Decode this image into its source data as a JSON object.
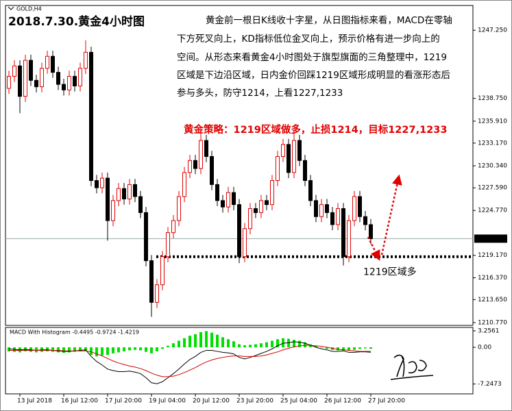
{
  "chart_data": [
    {
      "type": "candlestick",
      "title": "2018.7.30.黄金4小时图",
      "symbol": "GOLD,H4",
      "commentary": [
        "黄金前一根日K线收十字星，从日图指标来看，MACD在零轴",
        "下方死叉向上，KD指标低位金叉向上，预示价格有进一步向上的",
        "空间。从形态来看黄金4小时图处于旗型旗面的三角整理中，1219",
        "区域是下边沿区域，日内金价回踩1219区域形成明显的看涨形态后",
        "参与多头，防守1214，上看1227,1233"
      ],
      "strategy": "黄金策略：1219区域做多，止损1214，目标1227,1233",
      "support": {
        "value": 1219,
        "label": "1219区域多"
      },
      "last_price": {
        "value": 1221.25,
        "label": "1221.250"
      },
      "categories": [
        null,
        null,
        "13 Jul 2018",
        null,
        null,
        null,
        null,
        null,
        null,
        null,
        "16 Jul 12:00",
        null,
        null,
        null,
        null,
        null,
        null,
        null,
        "17 Jul 20:00",
        null,
        null,
        null,
        null,
        null,
        null,
        null,
        "19 Jul 04:00",
        null,
        null,
        null,
        null,
        null,
        null,
        null,
        "20 Jul 12:00",
        null,
        null,
        null,
        null,
        null,
        null,
        null,
        "23 Jul 20:00",
        null,
        null,
        null,
        null,
        null,
        null,
        null,
        "25 Jul 04:00",
        null,
        null,
        null,
        null,
        null,
        null,
        null,
        "26 Jul 12:00",
        null,
        null,
        null,
        null,
        null,
        null,
        null,
        "27 Jul 20:00"
      ],
      "open": [
        1240.0,
        1241.5,
        1242.8,
        1239.0,
        1243.5,
        1241.0,
        1240.2,
        1242.5,
        1244.0,
        1242.0,
        1240.5,
        1239.8,
        1241.5,
        1240.3,
        1242.5,
        1244.5,
        1228.5,
        1227.6,
        1228.8,
        1223.5,
        1226.0,
        1227.5,
        1226.2,
        1228.0,
        1226.5,
        1224.5,
        1218.5,
        1213.3,
        1215.5,
        1219.0,
        1222.0,
        1223.5,
        1226.5,
        1229.5,
        1231.0,
        1230.0,
        1233.5,
        1231.5,
        1228.0,
        1226.0,
        1225.2,
        1227.0,
        1225.5,
        1219.0,
        1222.5,
        1225.0,
        1224.5,
        1226.0,
        1225.5,
        1228.5,
        1231.5,
        1233.0,
        1229.5,
        1233.5,
        1231.0,
        1228.5,
        1226.0,
        1224.0,
        1225.5,
        1224.5,
        1223.0,
        1225.0,
        1219.0,
        1223.5,
        1226.5,
        1224.0,
        1223.0
      ],
      "high": [
        1242.2,
        1243.5,
        1243.5,
        1244.2,
        1244.2,
        1241.7,
        1243.2,
        1244.7,
        1244.7,
        1242.7,
        1241.2,
        1242.2,
        1242.2,
        1243.2,
        1246.0,
        1245.2,
        1229.2,
        1229.5,
        1229.5,
        1226.7,
        1228.2,
        1228.2,
        1228.7,
        1228.7,
        1227.2,
        1225.2,
        1219.2,
        1216.2,
        1219.7,
        1222.7,
        1224.2,
        1227.2,
        1230.2,
        1231.7,
        1231.7,
        1235.0,
        1234.2,
        1232.2,
        1228.7,
        1226.7,
        1227.7,
        1227.7,
        1226.2,
        1223.2,
        1225.7,
        1225.7,
        1226.7,
        1226.7,
        1229.2,
        1232.2,
        1233.7,
        1233.7,
        1234.8,
        1234.2,
        1231.7,
        1229.2,
        1226.7,
        1226.2,
        1226.2,
        1225.2,
        1225.7,
        1225.7,
        1224.2,
        1227.2,
        1227.2,
        1224.7,
        1223.7
      ],
      "low": [
        1239.3,
        1240.8,
        1236.9,
        1238.3,
        1240.3,
        1239.5,
        1239.5,
        1241.8,
        1241.3,
        1239.8,
        1239.1,
        1239.1,
        1239.6,
        1239.6,
        1241.8,
        1227.8,
        1226.9,
        1226.9,
        1221.0,
        1222.8,
        1225.3,
        1225.5,
        1225.5,
        1225.8,
        1223.8,
        1217.8,
        1211.5,
        1212.6,
        1214.8,
        1218.3,
        1221.3,
        1222.8,
        1225.8,
        1228.8,
        1229.3,
        1229.3,
        1230.8,
        1227.3,
        1225.3,
        1224.5,
        1224.5,
        1224.8,
        1218.2,
        1218.3,
        1221.8,
        1223.8,
        1223.8,
        1224.8,
        1224.8,
        1227.8,
        1230.8,
        1228.8,
        1228.8,
        1230.3,
        1227.8,
        1225.3,
        1223.3,
        1223.3,
        1223.8,
        1222.3,
        1222.3,
        1217.9,
        1218.3,
        1222.8,
        1223.3,
        1222.3,
        1220.55
      ],
      "close": [
        1241.5,
        1242.8,
        1239.0,
        1243.5,
        1241.0,
        1240.2,
        1242.5,
        1244.0,
        1242.0,
        1240.5,
        1239.8,
        1241.5,
        1240.3,
        1242.5,
        1244.5,
        1228.5,
        1227.6,
        1228.8,
        1223.5,
        1226.0,
        1227.5,
        1226.2,
        1228.0,
        1226.5,
        1224.5,
        1218.5,
        1213.3,
        1215.5,
        1219.0,
        1222.0,
        1223.5,
        1226.5,
        1229.5,
        1231.0,
        1230.0,
        1233.5,
        1231.5,
        1228.0,
        1226.0,
        1225.2,
        1227.0,
        1225.5,
        1219.0,
        1222.5,
        1225.0,
        1224.5,
        1226.0,
        1225.5,
        1228.5,
        1231.5,
        1233.0,
        1229.5,
        1233.5,
        1231.0,
        1228.5,
        1226.0,
        1224.0,
        1225.5,
        1224.5,
        1223.0,
        1225.0,
        1219.0,
        1223.5,
        1226.5,
        1224.0,
        1223.0,
        1221.25
      ],
      "up_color": "#e00000",
      "down_color": "#000000",
      "ylim": [
        1210.43,
        1250.34
      ],
      "yticks": [
        {
          "value": 1247.25,
          "label": "1247.250"
        },
        {
          "value": 1238.75,
          "label": "1238.750"
        },
        {
          "value": 1235.91,
          "label": "1235.910"
        },
        {
          "value": 1233.17,
          "label": "1233.170"
        },
        {
          "value": 1230.34,
          "label": "1230.340"
        },
        {
          "value": 1227.59,
          "label": "1227.590"
        },
        {
          "value": 1224.77,
          "label": "1224.770"
        },
        {
          "value": 1219.17,
          "label": "1219.170"
        },
        {
          "value": 1216.37,
          "label": "1216.370"
        },
        {
          "value": 1213.65,
          "label": "1213.650"
        },
        {
          "value": 1210.77,
          "label": "1210.770"
        }
      ]
    },
    {
      "type": "macd",
      "title": "MACD With Histogram -0.4495 -0.9724 -1.4219",
      "histogram": {
        "color": "#00e000",
        "values": [
          -0.8,
          -0.9,
          -1.0,
          -0.8,
          -0.9,
          -1.0,
          -0.9,
          -0.8,
          -0.9,
          -1.0,
          -1.1,
          -1.0,
          -0.9,
          -0.8,
          -0.7,
          -1.5,
          -1.8,
          -1.6,
          -1.5,
          -1.2,
          -1.0,
          -0.8,
          -0.6,
          -0.5,
          -0.6,
          -0.9,
          -1.2,
          -0.8,
          -0.3,
          0.3,
          0.8,
          1.3,
          1.8,
          2.3,
          2.6,
          3.0,
          3.2,
          2.9,
          2.5,
          2.0,
          1.6,
          1.2,
          0.6,
          0.4,
          0.5,
          0.6,
          0.8,
          1.0,
          1.3,
          1.6,
          1.8,
          1.7,
          1.5,
          1.3,
          1.0,
          0.6,
          0.3,
          0.0,
          -0.3,
          -0.5,
          -0.6,
          -0.7,
          -0.6,
          -0.5,
          -0.3,
          -0.2,
          -0.3
        ]
      },
      "series": [
        {
          "color": "#000000",
          "values": [
            -0.3,
            -0.4,
            -0.5,
            -0.4,
            -0.5,
            -0.6,
            -0.5,
            -0.5,
            -0.6,
            -0.7,
            -0.8,
            -0.8,
            -0.7,
            -0.6,
            -0.5,
            -1.8,
            -2.8,
            -3.5,
            -4.3,
            -4.6,
            -4.8,
            -4.8,
            -4.7,
            -4.9,
            -5.2,
            -6.0,
            -7.0,
            -7.2,
            -6.8,
            -6.0,
            -5.2,
            -4.3,
            -3.3,
            -2.4,
            -1.8,
            -1.0,
            -0.6,
            -0.6,
            -0.8,
            -1.0,
            -1.1,
            -1.3,
            -2.0,
            -2.3,
            -2.0,
            -1.6,
            -1.2,
            -0.8,
            -0.3,
            0.3,
            0.8,
            0.9,
            1.1,
            1.0,
            0.8,
            0.4,
            0.0,
            -0.3,
            -0.5,
            -0.8,
            -0.8,
            -0.7,
            -1.0,
            -1.0,
            -0.9,
            -0.9,
            -0.97
          ]
        },
        {
          "color": "#d00000",
          "values": [
            -0.6,
            -0.6,
            -0.6,
            -0.6,
            -0.6,
            -0.6,
            -0.6,
            -0.6,
            -0.6,
            -0.6,
            -0.7,
            -0.7,
            -0.7,
            -0.7,
            -0.7,
            -0.9,
            -1.3,
            -1.7,
            -2.2,
            -2.7,
            -3.1,
            -3.4,
            -3.7,
            -3.9,
            -4.2,
            -4.6,
            -5.1,
            -5.5,
            -5.8,
            -5.8,
            -5.7,
            -5.4,
            -5.0,
            -4.5,
            -4.0,
            -3.4,
            -2.9,
            -2.5,
            -2.2,
            -2.0,
            -1.8,
            -1.7,
            -1.7,
            -1.8,
            -1.8,
            -1.8,
            -1.7,
            -1.5,
            -1.2,
            -0.9,
            -0.5,
            -0.2,
            0.1,
            0.3,
            0.4,
            0.4,
            0.3,
            0.2,
            0.0,
            -0.2,
            -0.4,
            -0.5,
            -0.6,
            -0.7,
            -0.8,
            -0.8,
            -0.8
          ]
        }
      ],
      "ylim": [
        -9.2,
        3.93
      ],
      "yticks": [
        3.2561,
        {
          "value": 0,
          "label": "0.00"
        },
        -7.2473
      ]
    }
  ]
}
